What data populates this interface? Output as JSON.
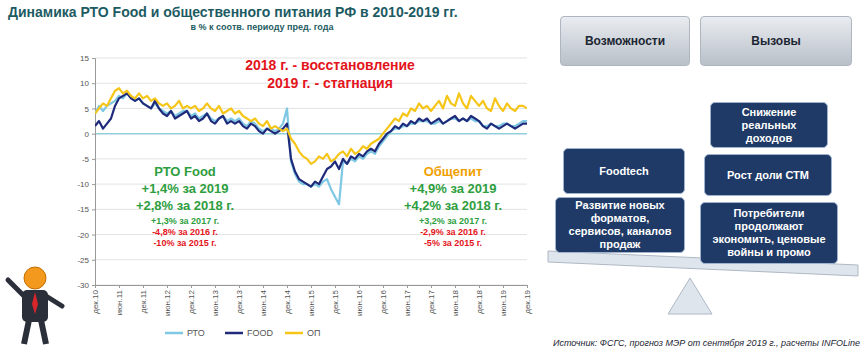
{
  "chart_data": {
    "type": "line",
    "title": "Динамика РТО Food и общественного питания РФ в 2010-2019 гг.",
    "subtitle": "в % к соотв. периоду пред. года",
    "annotations": [
      {
        "text": "2018 г. - восстановление",
        "color": "#e3141b"
      },
      {
        "text": "2019 г. - стагнация",
        "color": "#e3141b"
      },
      {
        "text": "РТО Food",
        "color": "#2e9e3e"
      },
      {
        "text": "+1,4% за 2019",
        "color": "#2e9e3e"
      },
      {
        "text": "+2,8% за 2018 г.",
        "color": "#2e9e3e"
      },
      {
        "text": "+1,3% за 2017 г.",
        "color": "#2e9e3e"
      },
      {
        "text": "-4,8% за 2016 г.",
        "color": "#e3141b"
      },
      {
        "text": "-10% за 2015 г.",
        "color": "#e3141b"
      },
      {
        "text": "Общепит",
        "color": "#f0a000"
      },
      {
        "text": "+4,9% за 2019",
        "color": "#2e9e3e"
      },
      {
        "text": "+4,2% за 2018 г.",
        "color": "#2e9e3e"
      },
      {
        "text": "+3,2% за 2017 г.",
        "color": "#2e9e3e"
      },
      {
        "text": "-2,9% за 2016 г.",
        "color": "#e3141b"
      },
      {
        "text": "-5% за 2015 г.",
        "color": "#e3141b"
      }
    ],
    "source": "Источник: ФСГС, прогноз МЭР от сентября 2019 г., расчеты INFOLine",
    "categories": [
      "дек.10",
      null,
      null,
      null,
      null,
      null,
      "июн.11",
      null,
      null,
      null,
      null,
      null,
      "дек.11",
      null,
      null,
      null,
      null,
      null,
      "июн.12",
      null,
      null,
      null,
      null,
      null,
      "дек.12",
      null,
      null,
      null,
      null,
      null,
      "июн.13",
      null,
      null,
      null,
      null,
      null,
      "дек.13",
      null,
      null,
      null,
      null,
      null,
      "июн.14",
      null,
      null,
      null,
      null,
      null,
      "дек.14",
      null,
      null,
      null,
      null,
      null,
      "июн.15",
      null,
      null,
      null,
      null,
      null,
      "дек.15",
      null,
      null,
      null,
      null,
      null,
      "июн.16",
      null,
      null,
      null,
      null,
      null,
      "дек.16",
      null,
      null,
      null,
      null,
      null,
      "июн.17",
      null,
      null,
      null,
      null,
      null,
      "дек.17",
      null,
      null,
      null,
      null,
      null,
      "июн.18",
      null,
      null,
      null,
      null,
      null,
      "дек.18",
      null,
      null,
      null,
      null,
      null,
      "июн.19",
      null,
      null,
      null,
      null,
      null,
      "дек.19"
    ],
    "series": [
      {
        "name": "РТО",
        "color": "#7ec8e3",
        "values": [
          4.0,
          5.5,
          4.5,
          5.5,
          6.0,
          6.5,
          7.5,
          7.0,
          8.0,
          7.5,
          6.5,
          7.0,
          6.0,
          5.5,
          5.0,
          6.0,
          5.0,
          4.5,
          4.0,
          4.5,
          3.5,
          4.0,
          4.5,
          4.5,
          3.5,
          4.0,
          3.0,
          3.5,
          4.0,
          3.0,
          2.5,
          3.0,
          3.5,
          2.5,
          3.0,
          2.5,
          3.0,
          2.0,
          1.5,
          2.5,
          2.0,
          1.0,
          0.5,
          1.0,
          1.0,
          0.5,
          1.0,
          2.0,
          5.0,
          -5.5,
          -8.0,
          -9.5,
          -10.0,
          -10.0,
          -10.5,
          -10.0,
          -10.5,
          -9.5,
          -9.0,
          -11.0,
          -12.5,
          -14.0,
          -5.5,
          -6.0,
          -5.0,
          -5.5,
          -4.5,
          -5.0,
          -4.0,
          -3.5,
          -4.0,
          -2.5,
          -1.5,
          -0.5,
          0.5,
          1.0,
          1.0,
          1.5,
          1.5,
          2.0,
          2.0,
          2.5,
          2.5,
          2.5,
          2.0,
          2.0,
          2.5,
          2.0,
          2.5,
          3.0,
          3.0,
          2.5,
          3.0,
          2.5,
          3.0,
          2.5,
          2.5,
          1.5,
          1.5,
          2.0,
          1.5,
          1.5,
          2.0,
          2.0,
          1.5,
          1.5,
          2.0,
          2.5,
          2.5
        ]
      },
      {
        "name": "FOOD",
        "color": "#1f2a7a",
        "values": [
          1.5,
          2.5,
          1.0,
          2.0,
          3.0,
          5.5,
          7.0,
          7.5,
          8.0,
          7.0,
          6.5,
          7.0,
          6.0,
          5.5,
          5.0,
          6.5,
          5.0,
          4.0,
          3.5,
          4.5,
          3.0,
          3.5,
          4.0,
          4.5,
          3.0,
          3.5,
          2.5,
          3.0,
          4.0,
          2.5,
          2.0,
          3.0,
          3.5,
          2.0,
          2.5,
          2.0,
          2.5,
          1.5,
          1.0,
          2.0,
          1.5,
          0.5,
          0.0,
          1.0,
          0.5,
          0.0,
          0.5,
          1.0,
          2.0,
          -5.0,
          -7.5,
          -9.0,
          -9.5,
          -10.0,
          -10.5,
          -9.5,
          -10.0,
          -8.5,
          -7.0,
          -6.5,
          -5.5,
          -7.0,
          -5.0,
          -6.0,
          -4.5,
          -5.0,
          -4.0,
          -4.5,
          -3.5,
          -3.0,
          -3.5,
          -2.0,
          -1.0,
          0.0,
          0.5,
          1.5,
          1.0,
          2.0,
          1.5,
          2.5,
          2.0,
          3.0,
          2.5,
          3.0,
          2.0,
          2.5,
          3.0,
          2.0,
          2.5,
          3.0,
          3.5,
          2.5,
          3.0,
          2.5,
          3.5,
          3.0,
          2.5,
          1.5,
          1.0,
          2.0,
          1.5,
          1.0,
          1.5,
          2.0,
          1.5,
          1.0,
          1.5,
          2.0,
          2.0
        ]
      },
      {
        "name": "ОП",
        "color": "#f5c518",
        "values": [
          4.0,
          5.0,
          6.0,
          5.5,
          7.0,
          8.5,
          9.0,
          8.0,
          8.5,
          7.5,
          7.0,
          8.0,
          7.0,
          7.5,
          6.5,
          7.0,
          6.0,
          5.5,
          6.0,
          5.0,
          5.5,
          6.5,
          5.0,
          5.5,
          5.0,
          5.5,
          4.5,
          5.0,
          6.0,
          5.0,
          4.5,
          5.5,
          4.0,
          4.5,
          5.0,
          4.0,
          4.5,
          3.5,
          3.0,
          2.5,
          3.0,
          2.0,
          1.5,
          2.5,
          1.0,
          1.5,
          1.0,
          0.5,
          1.0,
          -1.0,
          -2.0,
          -3.5,
          -4.5,
          -5.0,
          -6.0,
          -5.5,
          -4.5,
          -5.0,
          -4.0,
          -5.5,
          -5.0,
          -4.0,
          -3.5,
          -4.5,
          -3.0,
          -4.0,
          -3.5,
          -2.5,
          -3.0,
          -2.0,
          -1.5,
          -1.0,
          0.0,
          1.0,
          2.0,
          3.0,
          2.5,
          4.0,
          3.5,
          5.0,
          4.5,
          6.0,
          5.0,
          5.5,
          4.5,
          5.5,
          6.5,
          5.0,
          7.5,
          6.0,
          5.5,
          8.0,
          6.0,
          5.0,
          7.5,
          6.5,
          5.5,
          6.5,
          5.0,
          4.5,
          7.0,
          5.5,
          4.5,
          6.0,
          5.0,
          4.5,
          5.5,
          5.5,
          5.0
        ]
      }
    ],
    "ylim": [
      -30,
      15
    ],
    "yticks": [
      -30,
      -25,
      -20,
      -15,
      -10,
      -5,
      0,
      5,
      10,
      15
    ],
    "grid": true,
    "legend": "bottom"
  },
  "diagram": {
    "headers": [
      "Возможности",
      "Вызовы"
    ],
    "opportunities": [
      "Foodtech",
      "Развитие новых форматов, сервисов, каналов продаж"
    ],
    "challenges": [
      "Снижение реальных доходов",
      "Рост доли СТМ",
      "Потребители продолжают экономить, ценовые войны и промо"
    ]
  }
}
